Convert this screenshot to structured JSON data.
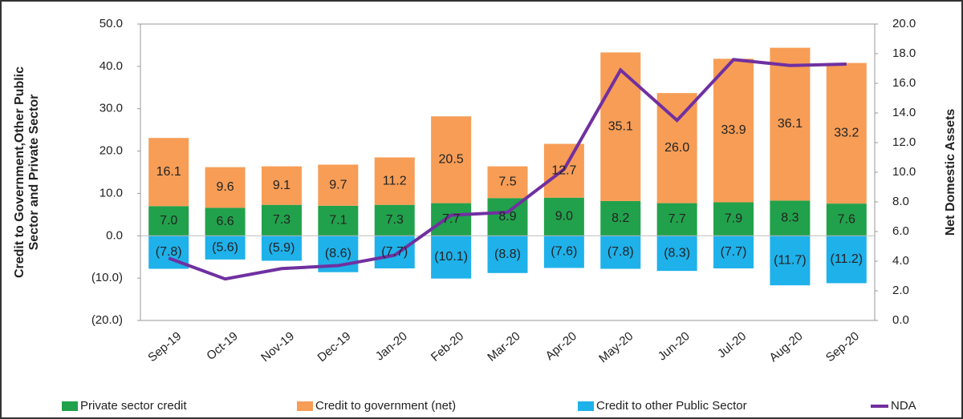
{
  "chart_data": {
    "type": "stacked-bar-line",
    "y_axis_label": "Credit to Government,Other Public Sector and Private Sector",
    "y2_axis_label": "Net Domestic Assets",
    "categories": [
      "Sep-19",
      "Oct-19",
      "Nov-19",
      "Dec-19",
      "Jan-20",
      "Feb-20",
      "Mar-20",
      "Apr-20",
      "May-20",
      "Jun-20",
      "Jul-20",
      "Aug-20",
      "Sep-20"
    ],
    "series": [
      {
        "name": "Private sector credit",
        "color": "#21a14b",
        "kind": "bar",
        "values": [
          7.0,
          6.6,
          7.3,
          7.1,
          7.3,
          7.7,
          8.9,
          9.0,
          8.2,
          7.7,
          7.9,
          8.3,
          7.6
        ],
        "value_labels": [
          "7.0",
          "6.6",
          "7.3",
          "7.1",
          "7.3",
          "7.7",
          "8.9",
          "9.0",
          "8.2",
          "7.7",
          "7.9",
          "8.3",
          "7.6"
        ]
      },
      {
        "name": "Credit to government (net)",
        "color": "#f79d56",
        "kind": "bar",
        "values": [
          16.1,
          9.6,
          9.1,
          9.7,
          11.2,
          20.5,
          7.5,
          12.7,
          35.1,
          26.0,
          33.9,
          36.1,
          33.2
        ],
        "value_labels": [
          "16.1",
          "9.6",
          "9.1",
          "9.7",
          "11.2",
          "20.5",
          "7.5",
          "12.7",
          "35.1",
          "26.0",
          "33.9",
          "36.1",
          "33.2"
        ]
      },
      {
        "name": "Credit to other Public Sector",
        "color": "#1fb1ea",
        "kind": "bar",
        "values": [
          -7.8,
          -5.6,
          -5.9,
          -8.6,
          -7.7,
          -10.1,
          -8.8,
          -7.6,
          -7.8,
          -8.3,
          -7.7,
          -11.7,
          -11.2
        ],
        "value_labels": [
          "(7.8)",
          "(5.6)",
          "(5.9)",
          "(8.6)",
          "(7.7)",
          "(10.1)",
          "(8.8)",
          "(7.6)",
          "(7.8)",
          "(8.3)",
          "(7.7)",
          "(11.7)",
          "(11.2)"
        ]
      },
      {
        "name": "NDA",
        "color": "#7030a0",
        "kind": "line",
        "axis": "y2",
        "values": [
          4.2,
          2.8,
          3.5,
          3.7,
          4.4,
          7.1,
          7.3,
          10.2,
          16.9,
          13.5,
          17.6,
          17.2,
          17.3
        ]
      }
    ],
    "ylim": [
      -20,
      50
    ],
    "yticks": [
      {
        "value": -20,
        "label": "(20.0)"
      },
      {
        "value": -10,
        "label": "(10.0)"
      },
      {
        "value": 0,
        "label": "0.0"
      },
      {
        "value": 10,
        "label": "10.0"
      },
      {
        "value": 20,
        "label": "20.0"
      },
      {
        "value": 30,
        "label": "30.0"
      },
      {
        "value": 40,
        "label": "40.0"
      },
      {
        "value": 50,
        "label": "50.0"
      }
    ],
    "y2lim": [
      0,
      20
    ],
    "y2ticks": [
      {
        "value": 0,
        "label": "0.0"
      },
      {
        "value": 2,
        "label": "2.0"
      },
      {
        "value": 4,
        "label": "4.0"
      },
      {
        "value": 6,
        "label": "6.0"
      },
      {
        "value": 8,
        "label": "8.0"
      },
      {
        "value": 10,
        "label": "10.0"
      },
      {
        "value": 12,
        "label": "12.0"
      },
      {
        "value": 14,
        "label": "14.0"
      },
      {
        "value": 16,
        "label": "16.0"
      },
      {
        "value": 18,
        "label": "18.0"
      },
      {
        "value": 20,
        "label": "20.0"
      }
    ],
    "grid": false
  }
}
